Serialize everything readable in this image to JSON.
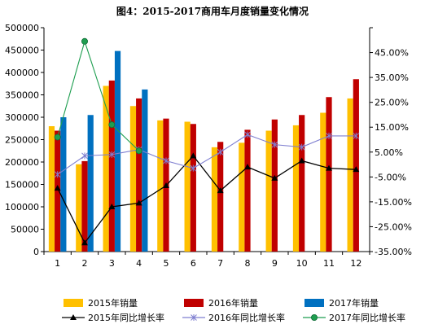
{
  "chart_data": {
    "type": "bar",
    "title": "图4：2015-2017商用车月度销量变化情况",
    "categories": [
      "1",
      "2",
      "3",
      "4",
      "5",
      "6",
      "7",
      "8",
      "9",
      "10",
      "11",
      "12"
    ],
    "y_left": {
      "min": 0,
      "max": 500000,
      "step": 50000,
      "tick_labels": [
        "0",
        "50000",
        "100000",
        "150000",
        "200000",
        "250000",
        "300000",
        "350000",
        "400000",
        "450000",
        "500000"
      ]
    },
    "y_right": {
      "min": -35,
      "max": 55,
      "step": 10,
      "tick_labels": [
        "-35.00%",
        "-25.00%",
        "-15.00%",
        "-5.00%",
        "5.00%",
        "15.00%",
        "25.00%",
        "35.00%",
        "45.00%"
      ]
    },
    "bar_series": [
      {
        "name": "2015年销量",
        "color": "#FFC000",
        "values": [
          280000,
          195000,
          370000,
          325000,
          293000,
          290000,
          233000,
          243000,
          270000,
          282000,
          310000,
          342000
        ]
      },
      {
        "name": "2016年销量",
        "color": "#C00000",
        "values": [
          270000,
          202000,
          382000,
          342000,
          297000,
          285000,
          245000,
          272000,
          295000,
          305000,
          345000,
          385000
        ]
      },
      {
        "name": "2017年销量",
        "color": "#0070C0",
        "values": [
          300000,
          305000,
          448000,
          362000,
          null,
          null,
          null,
          null,
          null,
          null,
          null,
          null
        ]
      }
    ],
    "line_series": [
      {
        "name": "2015年同比增长率",
        "color": "#000000",
        "marker": "triangle",
        "values": [
          -9.5,
          -31.5,
          -17,
          -15.5,
          -8.5,
          3.5,
          -10.5,
          -1,
          -5.5,
          1.5,
          -1.5,
          -2
        ]
      },
      {
        "name": "2016年同比增长率",
        "color": "#7F7FD0",
        "marker": "star",
        "values": [
          -4,
          3.5,
          4,
          6,
          1.5,
          -1.5,
          5,
          12,
          8,
          7,
          11.5,
          11.5
        ]
      },
      {
        "name": "2017年同比增长率",
        "color": "#1E9E50",
        "marker": "circle",
        "values": [
          11,
          49.5,
          16,
          5.5,
          null,
          null,
          null,
          null,
          null,
          null,
          null,
          null
        ]
      }
    ],
    "legend": {
      "position": "bottom",
      "rows": [
        [
          "2015年销量",
          "2016年销量",
          "2017年销量"
        ],
        [
          "2015年同比增长率",
          "2016年同比增长率",
          "2017年同比增长率"
        ]
      ]
    },
    "grid": false
  }
}
